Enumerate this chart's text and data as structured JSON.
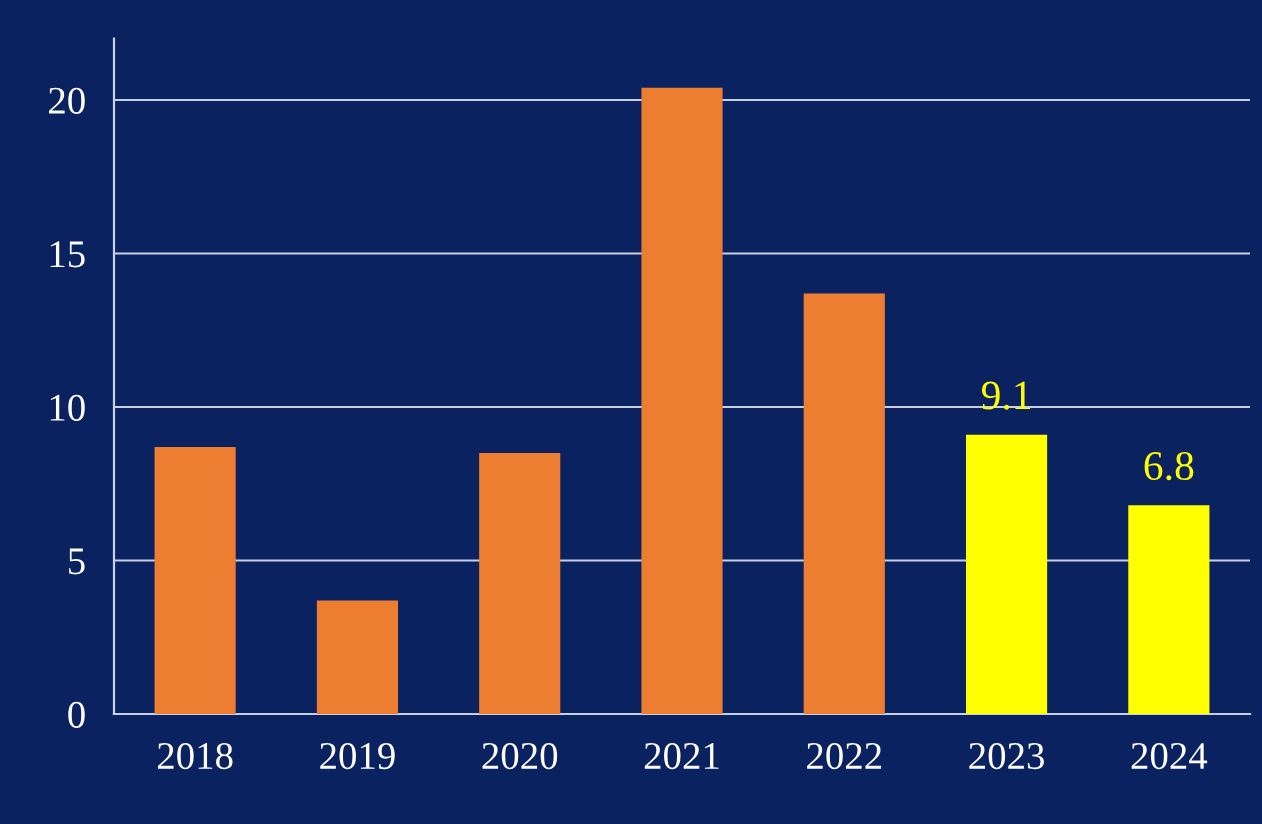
{
  "chart_data": {
    "type": "bar",
    "categories": [
      "2018",
      "2019",
      "2020",
      "2021",
      "2022",
      "2023",
      "2024"
    ],
    "values": [
      8.7,
      3.7,
      8.5,
      20.4,
      13.7,
      9.1,
      6.8
    ],
    "colors": [
      "#ed7d31",
      "#ed7d31",
      "#ed7d31",
      "#ed7d31",
      "#ed7d31",
      "#ffff00",
      "#ffff00"
    ],
    "value_labels": [
      null,
      null,
      null,
      null,
      null,
      "9.1",
      "6.8"
    ],
    "ylim": [
      0,
      22
    ],
    "yticks": [
      0,
      5,
      10,
      15,
      20
    ],
    "grid": "y"
  }
}
